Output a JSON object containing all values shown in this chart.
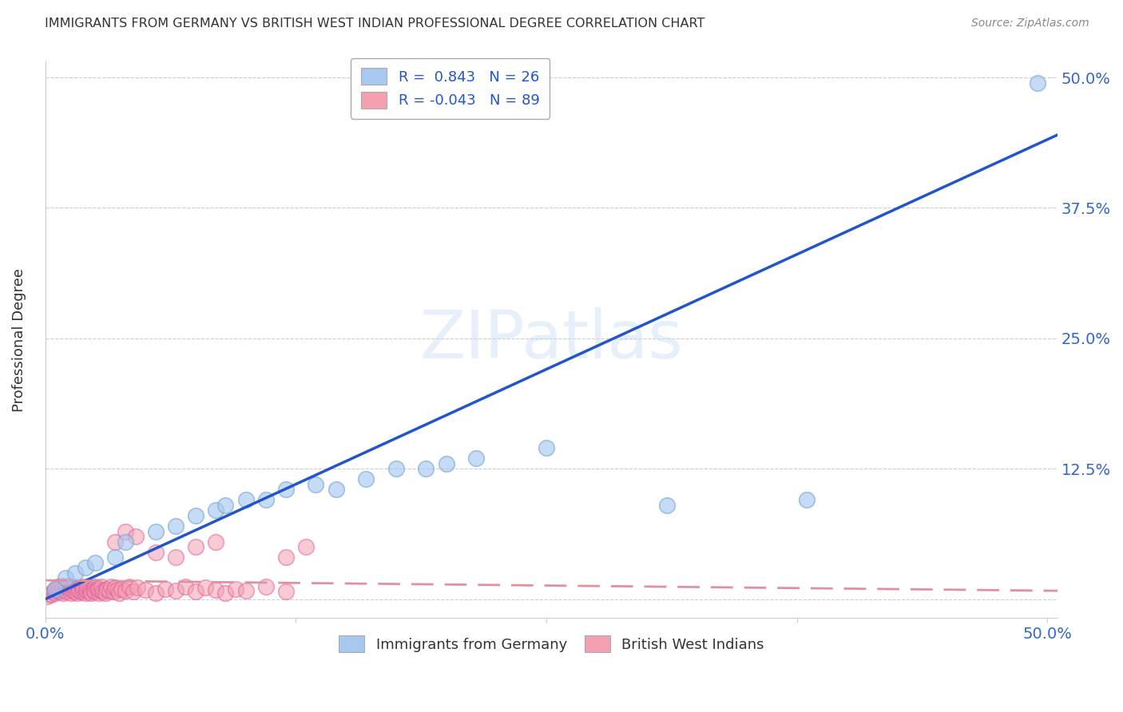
{
  "title": "IMMIGRANTS FROM GERMANY VS BRITISH WEST INDIAN PROFESSIONAL DEGREE CORRELATION CHART",
  "source": "Source: ZipAtlas.com",
  "ylabel": "Professional Degree",
  "xlim": [
    0.0,
    0.505
  ],
  "ylim": [
    -0.018,
    0.515
  ],
  "xticks": [
    0.0,
    0.125,
    0.25,
    0.375,
    0.5
  ],
  "xticklabels": [
    "0.0%",
    "",
    "",
    "",
    "50.0%"
  ],
  "yticks": [
    0.0,
    0.125,
    0.25,
    0.375,
    0.5
  ],
  "yticklabels_right": [
    "",
    "12.5%",
    "25.0%",
    "37.5%",
    "50.0%"
  ],
  "blue_R": 0.843,
  "blue_N": 26,
  "pink_R": -0.043,
  "pink_N": 89,
  "blue_color": "#a8c8f0",
  "pink_color": "#f4a0b0",
  "blue_line_color": "#2255cc",
  "pink_line_color": "#e090a0",
  "background_color": "#ffffff",
  "watermark": "ZIPatlas",
  "blue_line_x0": 0.0,
  "blue_line_y0": 0.0,
  "blue_line_x1": 0.505,
  "blue_line_y1": 0.445,
  "pink_line_x0": 0.0,
  "pink_line_y0": 0.018,
  "pink_line_x1": 0.505,
  "pink_line_y1": 0.008,
  "blue_points_x": [
    0.005,
    0.01,
    0.015,
    0.02,
    0.025,
    0.035,
    0.04,
    0.055,
    0.065,
    0.075,
    0.085,
    0.09,
    0.1,
    0.11,
    0.12,
    0.135,
    0.145,
    0.16,
    0.175,
    0.19,
    0.2,
    0.215,
    0.25,
    0.31,
    0.38,
    0.495
  ],
  "blue_points_y": [
    0.01,
    0.02,
    0.025,
    0.03,
    0.035,
    0.04,
    0.055,
    0.065,
    0.07,
    0.08,
    0.085,
    0.09,
    0.095,
    0.095,
    0.105,
    0.11,
    0.105,
    0.115,
    0.125,
    0.125,
    0.13,
    0.135,
    0.145,
    0.09,
    0.095,
    0.495
  ],
  "pink_points_x": [
    0.001,
    0.002,
    0.003,
    0.004,
    0.005,
    0.005,
    0.006,
    0.006,
    0.007,
    0.007,
    0.008,
    0.008,
    0.009,
    0.009,
    0.01,
    0.01,
    0.011,
    0.011,
    0.012,
    0.012,
    0.013,
    0.013,
    0.014,
    0.014,
    0.015,
    0.015,
    0.016,
    0.016,
    0.017,
    0.017,
    0.018,
    0.018,
    0.019,
    0.019,
    0.02,
    0.02,
    0.021,
    0.021,
    0.022,
    0.022,
    0.023,
    0.023,
    0.024,
    0.024,
    0.025,
    0.025,
    0.026,
    0.026,
    0.027,
    0.027,
    0.028,
    0.028,
    0.029,
    0.03,
    0.03,
    0.031,
    0.032,
    0.033,
    0.034,
    0.035,
    0.036,
    0.037,
    0.038,
    0.04,
    0.042,
    0.044,
    0.046,
    0.05,
    0.055,
    0.06,
    0.065,
    0.07,
    0.075,
    0.08,
    0.085,
    0.09,
    0.095,
    0.1,
    0.11,
    0.12,
    0.13,
    0.035,
    0.04,
    0.045,
    0.055,
    0.065,
    0.075,
    0.085,
    0.12
  ],
  "pink_points_y": [
    0.003,
    0.005,
    0.004,
    0.007,
    0.006,
    0.01,
    0.008,
    0.012,
    0.007,
    0.011,
    0.009,
    0.013,
    0.006,
    0.01,
    0.008,
    0.012,
    0.007,
    0.011,
    0.009,
    0.013,
    0.006,
    0.01,
    0.008,
    0.012,
    0.007,
    0.011,
    0.009,
    0.006,
    0.01,
    0.008,
    0.012,
    0.007,
    0.011,
    0.009,
    0.006,
    0.01,
    0.008,
    0.012,
    0.007,
    0.011,
    0.009,
    0.006,
    0.01,
    0.008,
    0.012,
    0.007,
    0.011,
    0.009,
    0.006,
    0.01,
    0.008,
    0.012,
    0.007,
    0.009,
    0.006,
    0.01,
    0.008,
    0.012,
    0.007,
    0.011,
    0.009,
    0.006,
    0.01,
    0.008,
    0.012,
    0.007,
    0.011,
    0.009,
    0.006,
    0.01,
    0.008,
    0.012,
    0.007,
    0.011,
    0.009,
    0.006,
    0.01,
    0.008,
    0.012,
    0.007,
    0.05,
    0.055,
    0.065,
    0.06,
    0.045,
    0.04,
    0.05,
    0.055,
    0.04
  ]
}
